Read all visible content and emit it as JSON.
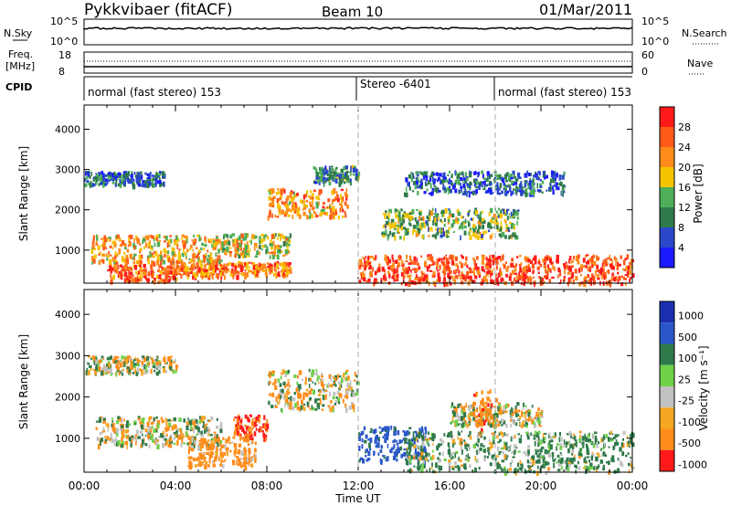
{
  "header": {
    "station": "Pykkvibaer (fitACF)",
    "beam": "Beam 10",
    "date": "01/Mar/2011"
  },
  "nsky_panel": {
    "left_label": "N.Sky",
    "right_label": "N.Search",
    "right_tick_top": "10^5",
    "right_tick_bottom": "10^0",
    "left_tick_top": "10^5",
    "left_tick_bottom": "10^0"
  },
  "freq_panel": {
    "left_label_1": "Freq.",
    "left_label_2": "[MHz]",
    "left_tick_top": "18",
    "left_tick_bottom": "8",
    "right_label": "Nave",
    "right_tick_top": "60",
    "right_tick_bottom": "0"
  },
  "cpid_panel": {
    "label": "CPID",
    "segments": [
      {
        "name": "normal (fast stereo) 153",
        "start_hour": 0
      },
      {
        "name": "Stereo -6401",
        "start_hour": 12
      },
      {
        "name": "normal (fast stereo) 153",
        "start_hour": 18
      }
    ]
  },
  "xaxis": {
    "label": "Time UT",
    "ticks": [
      "00:00",
      "04:00",
      "08:00",
      "12:00",
      "16:00",
      "20:00",
      "00:00"
    ]
  },
  "yaxis": {
    "label": "Slant Range [km]",
    "ticks": [
      "1000",
      "2000",
      "3000",
      "4000"
    ]
  },
  "power_colorbar": {
    "label": "Power [dB]",
    "ticks": [
      "4",
      "8",
      "12",
      "16",
      "20",
      "24",
      "28"
    ],
    "colors": [
      "#1a1aff",
      "#2a48c8",
      "#2f7a4a",
      "#4fae5a",
      "#f5c400",
      "#ff8c1a",
      "#ff5a1a",
      "#ff1a1a"
    ]
  },
  "velocity_colorbar": {
    "label": "Velocity [m s⁻¹]",
    "ticks": [
      "1000",
      "500",
      "100",
      "25",
      "-25",
      "-100",
      "-500",
      "-1000"
    ],
    "colors": [
      "#1a2fb0",
      "#2a56c8",
      "#2f7a4a",
      "#6fd04a",
      "#c2c2c2",
      "#f5a623",
      "#ff8c1a",
      "#ff1a1a"
    ]
  },
  "chart_data": {
    "type": "heatmap",
    "title": "Pykkvibaer (fitACF) Beam 10 01/Mar/2011",
    "xlabel": "Time UT",
    "ylabel": "Slant Range [km]",
    "xlim_hours": [
      0,
      24
    ],
    "ylim_km": [
      180,
      4600
    ],
    "x_ticks": [
      "00:00",
      "04:00",
      "08:00",
      "12:00",
      "16:00",
      "20:00",
      "00:00"
    ],
    "y_ticks": [
      1000,
      2000,
      3000,
      4000
    ],
    "panels": [
      {
        "name": "Power",
        "unit": "dB",
        "colorbar_ticks": [
          4,
          8,
          12,
          16,
          20,
          24,
          28
        ],
        "scatter_bands": [
          {
            "t_start": 0.0,
            "t_end": 3.5,
            "range_center": 2800,
            "range_width": 250,
            "value": 8
          },
          {
            "t_start": 0.3,
            "t_end": 6.0,
            "range_center": 1050,
            "range_width": 500,
            "value": 20
          },
          {
            "t_start": 1.0,
            "t_end": 4.0,
            "range_center": 450,
            "range_width": 300,
            "value": 26
          },
          {
            "t_start": 4.0,
            "t_end": 9.0,
            "range_center": 550,
            "range_width": 250,
            "value": 24
          },
          {
            "t_start": 6.0,
            "t_end": 9.0,
            "range_center": 1150,
            "range_width": 400,
            "value": 18
          },
          {
            "t_start": 8.0,
            "t_end": 11.5,
            "range_center": 2200,
            "range_width": 500,
            "value": 22
          },
          {
            "t_start": 10.0,
            "t_end": 12.0,
            "range_center": 2900,
            "range_width": 300,
            "value": 10
          },
          {
            "t_start": 12.0,
            "t_end": 24.0,
            "range_center": 550,
            "range_width": 500,
            "value": 27
          },
          {
            "t_start": 13.0,
            "t_end": 19.0,
            "range_center": 1700,
            "range_width": 500,
            "value": 14
          },
          {
            "t_start": 14.0,
            "t_end": 21.0,
            "range_center": 2700,
            "range_width": 400,
            "value": 8
          }
        ]
      },
      {
        "name": "Velocity",
        "unit": "m s^-1",
        "colorbar_ticks": [
          1000,
          500,
          100,
          25,
          -25,
          -100,
          -500,
          -1000
        ],
        "scatter_bands": [
          {
            "t_start": 0.0,
            "t_end": 4.0,
            "range_center": 2800,
            "range_width": 300,
            "value": 0
          },
          {
            "t_start": 0.5,
            "t_end": 6.0,
            "range_center": 1200,
            "range_width": 500,
            "value": 0
          },
          {
            "t_start": 4.5,
            "t_end": 7.5,
            "range_center": 700,
            "range_width": 500,
            "value": -150
          },
          {
            "t_start": 6.5,
            "t_end": 8.0,
            "range_center": 1300,
            "range_width": 400,
            "value": -300
          },
          {
            "t_start": 8.0,
            "t_end": 12.0,
            "range_center": 2200,
            "range_width": 700,
            "value": 0
          },
          {
            "t_start": 12.0,
            "t_end": 15.0,
            "range_center": 900,
            "range_width": 600,
            "value": 400
          },
          {
            "t_start": 14.0,
            "t_end": 24.0,
            "range_center": 700,
            "range_width": 700,
            "value": 80
          },
          {
            "t_start": 16.0,
            "t_end": 20.0,
            "range_center": 1600,
            "range_width": 400,
            "value": 0
          },
          {
            "t_start": 17.0,
            "t_end": 18.0,
            "range_center": 1700,
            "range_width": 700,
            "value": -200
          }
        ]
      }
    ],
    "mode_changes_hours": [
      12,
      18
    ]
  }
}
